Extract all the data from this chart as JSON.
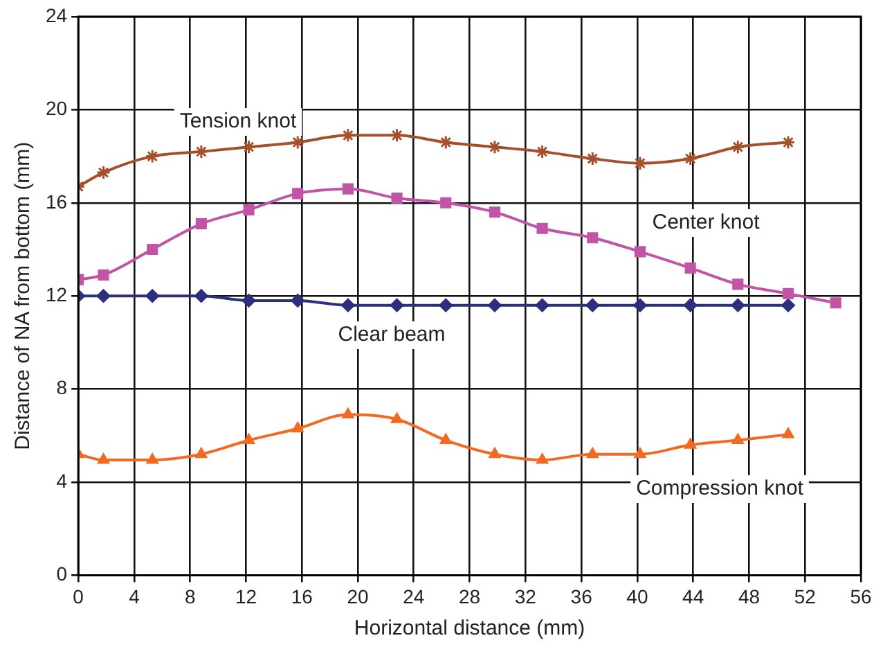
{
  "chart_data": {
    "type": "line",
    "xlabel": "Horizontal distance (mm)",
    "ylabel": "Distance of NA from bottom (mm)",
    "x": [
      0,
      1.8,
      5.3,
      8.8,
      12.2,
      15.7,
      19.3,
      22.8,
      26.3,
      29.8,
      33.2,
      36.8,
      40.2,
      43.8,
      47.2,
      50.8,
      54.2
    ],
    "xlim": [
      0,
      56
    ],
    "xticks": [
      0,
      4,
      8,
      12,
      16,
      20,
      24,
      28,
      32,
      36,
      40,
      44,
      48,
      52,
      56
    ],
    "ylim": [
      0,
      24
    ],
    "yticks": [
      0,
      4,
      8,
      12,
      16,
      20,
      24
    ],
    "grid": true,
    "legend": false,
    "series": [
      {
        "name": "Tension knot",
        "color": "#a5502a",
        "marker": "cross",
        "values": [
          16.7,
          17.3,
          18.0,
          18.2,
          18.4,
          18.6,
          18.9,
          18.9,
          18.6,
          18.4,
          18.2,
          17.9,
          17.7,
          17.9,
          18.4,
          18.6,
          null
        ]
      },
      {
        "name": "Center knot",
        "color": "#c055a8",
        "marker": "square",
        "values": [
          12.7,
          12.9,
          14.0,
          15.1,
          15.7,
          16.4,
          16.6,
          16.2,
          16.0,
          15.6,
          14.9,
          14.5,
          13.9,
          13.2,
          12.5,
          12.1,
          11.7
        ]
      },
      {
        "name": "Clear beam",
        "color": "#2b2f7c",
        "marker": "diamond",
        "values": [
          12.0,
          12.0,
          12.0,
          12.0,
          11.8,
          11.8,
          11.6,
          11.6,
          11.6,
          11.6,
          11.6,
          11.6,
          11.6,
          11.6,
          11.6,
          11.6,
          null
        ]
      },
      {
        "name": "Compression knot",
        "color": "#f26a21",
        "marker": "triangle",
        "values": [
          5.2,
          4.95,
          4.95,
          5.2,
          5.8,
          6.3,
          6.9,
          6.7,
          5.8,
          5.2,
          4.95,
          5.2,
          5.2,
          5.6,
          5.8,
          6.05,
          null
        ]
      }
    ]
  }
}
